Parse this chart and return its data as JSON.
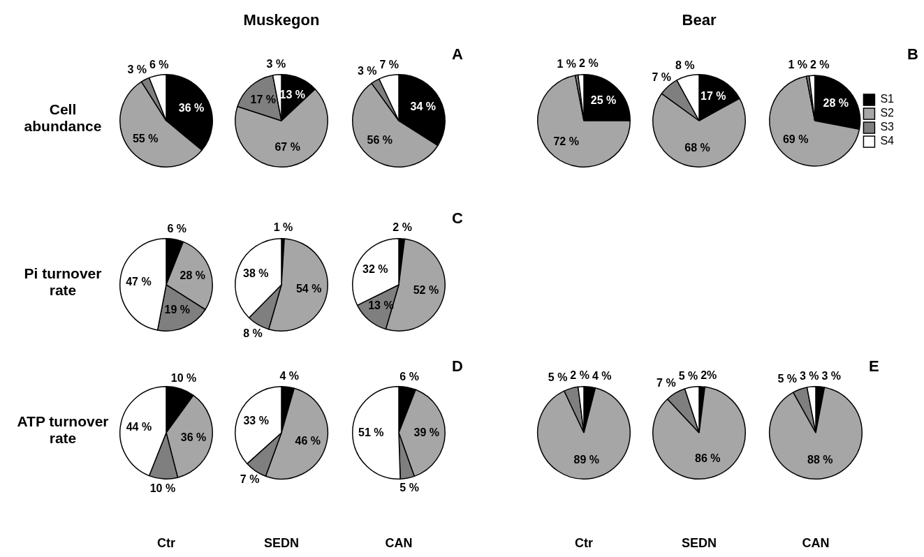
{
  "chart_data": [
    {
      "type": "pie",
      "ylabel": "Cell abundance",
      "colors": [
        "#000000",
        "#a6a6a6",
        "#7f7f7f",
        "#ffffff"
      ],
      "values": [
        36,
        55,
        3,
        6
      ],
      "value_labels": [
        "36 %",
        "55 %",
        "3 %",
        "6 %"
      ]
    },
    {
      "type": "pie",
      "title": "Muskegon",
      "colors": [
        "#000000",
        "#a6a6a6",
        "#7f7f7f",
        "#ffffff"
      ],
      "values": [
        13,
        67,
        17,
        3
      ],
      "value_labels": [
        "13 %",
        "67 %",
        "17 %",
        "3 %"
      ]
    },
    {
      "type": "pie",
      "annotations": [
        "A"
      ],
      "colors": [
        "#000000",
        "#a6a6a6",
        "#7f7f7f",
        "#ffffff"
      ],
      "values": [
        34,
        56,
        3,
        7
      ],
      "value_labels": [
        "34 %",
        "56 %",
        "3 %",
        "7 %"
      ]
    },
    {
      "type": "pie",
      "colors": [
        "#000000",
        "#a6a6a6",
        "#7f7f7f",
        "#ffffff"
      ],
      "values": [
        25,
        72,
        1,
        2
      ],
      "value_labels": [
        "25 %",
        "72 %",
        "1 %",
        "2 %"
      ]
    },
    {
      "type": "pie",
      "title": "Bear",
      "colors": [
        "#000000",
        "#a6a6a6",
        "#7f7f7f",
        "#ffffff"
      ],
      "values": [
        17,
        68,
        7,
        8
      ],
      "value_labels": [
        "17 %",
        "68 %",
        "7 %",
        "8 %"
      ]
    },
    {
      "type": "pie",
      "annotations": [
        "B"
      ],
      "legend": "right",
      "categories": [
        "S1",
        "S2",
        "S3",
        "S4"
      ],
      "colors": [
        "#000000",
        "#a6a6a6",
        "#7f7f7f",
        "#ffffff"
      ],
      "values": [
        28,
        69,
        1,
        2
      ],
      "value_labels": [
        "28 %",
        "69 %",
        "1 %",
        "2 %"
      ]
    },
    {
      "type": "pie",
      "ylabel": "Pi turnover rate",
      "colors": [
        "#000000",
        "#a6a6a6",
        "#7f7f7f",
        "#ffffff"
      ],
      "values": [
        6,
        28,
        19,
        47
      ],
      "value_labels": [
        "6 %",
        "28 %",
        "19 %",
        "47 %"
      ]
    },
    {
      "type": "pie",
      "colors": [
        "#000000",
        "#a6a6a6",
        "#7f7f7f",
        "#ffffff"
      ],
      "values": [
        1,
        54,
        8,
        38
      ],
      "value_labels": [
        "1 %",
        "54 %",
        "8 %",
        "38 %"
      ]
    },
    {
      "type": "pie",
      "annotations": [
        "C"
      ],
      "colors": [
        "#000000",
        "#a6a6a6",
        "#7f7f7f",
        "#ffffff"
      ],
      "values": [
        2,
        52,
        13,
        32
      ],
      "value_labels": [
        "2 %",
        "52 %",
        "13 %",
        "32 %"
      ]
    },
    {
      "type": "pie",
      "ylabel": "ATP turnover rate",
      "xlabel": "Ctr",
      "colors": [
        "#000000",
        "#a6a6a6",
        "#7f7f7f",
        "#ffffff"
      ],
      "values": [
        10,
        36,
        10,
        44
      ],
      "value_labels": [
        "10 %",
        "36 %",
        "10 %",
        "44 %"
      ]
    },
    {
      "type": "pie",
      "xlabel": "SEDN",
      "colors": [
        "#000000",
        "#a6a6a6",
        "#7f7f7f",
        "#ffffff"
      ],
      "values": [
        4,
        46,
        7,
        33
      ],
      "value_labels": [
        "4 %",
        "46 %",
        "7 %",
        "33 %"
      ]
    },
    {
      "type": "pie",
      "xlabel": "CAN",
      "annotations": [
        "D"
      ],
      "colors": [
        "#000000",
        "#a6a6a6",
        "#7f7f7f",
        "#ffffff"
      ],
      "values": [
        6,
        39,
        5,
        51
      ],
      "value_labels": [
        "6 %",
        "39 %",
        "5 %",
        "51 %"
      ]
    },
    {
      "type": "pie",
      "xlabel": "Ctr",
      "colors": [
        "#000000",
        "#a6a6a6",
        "#7f7f7f",
        "#ffffff"
      ],
      "values": [
        4,
        89,
        5,
        2
      ],
      "value_labels": [
        "4 %",
        "89 %",
        "5 %",
        "2 %"
      ]
    },
    {
      "type": "pie",
      "xlabel": "SEDN",
      "colors": [
        "#000000",
        "#a6a6a6",
        "#7f7f7f",
        "#ffffff"
      ],
      "values": [
        2,
        86,
        7,
        5
      ],
      "value_labels": [
        "2%",
        "86 %",
        "7 %",
        "5 %"
      ]
    },
    {
      "type": "pie",
      "xlabel": "CAN",
      "annotations": [
        "E"
      ],
      "colors": [
        "#000000",
        "#a6a6a6",
        "#7f7f7f",
        "#ffffff"
      ],
      "values": [
        3,
        88,
        5,
        3
      ],
      "value_labels": [
        "3 %",
        "88 %",
        "5 %",
        "3 %"
      ]
    }
  ]
}
